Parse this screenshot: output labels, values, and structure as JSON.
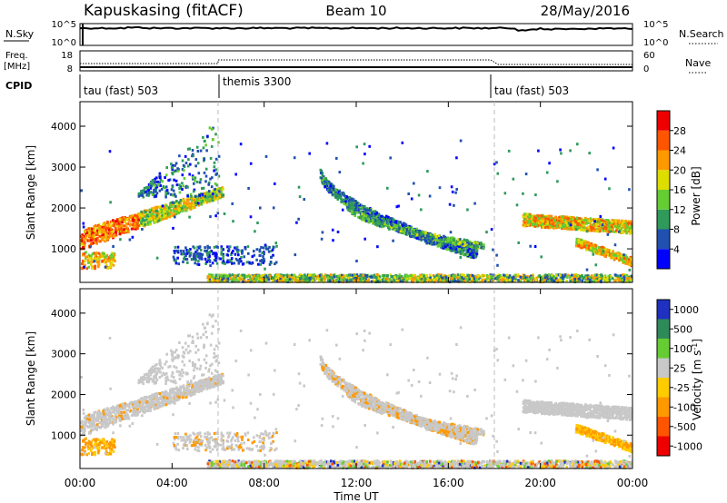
{
  "header": {
    "station": "Kapuskasing (fitACF)",
    "beam": "Beam 10",
    "date": "28/May/2016"
  },
  "top_panels": {
    "nsky_label": "N.Sky",
    "nsky_ticks": [
      "10^5",
      "10^0"
    ],
    "nsearch_label": "N.Search",
    "freq_label": "Freq.",
    "freq_unit": "[MHz]",
    "freq_ticks": [
      "18",
      "8"
    ],
    "nave_label": "Nave",
    "nave_ticks": [
      "60",
      "0"
    ],
    "cpid_label": "CPID",
    "cpid_segments": [
      {
        "name": "tau (fast) 503",
        "start_hour": 0
      },
      {
        "name": "themis 3300",
        "start_hour": 6
      },
      {
        "name": "tau (fast) 503",
        "start_hour": 18
      }
    ]
  },
  "chart_data": [
    {
      "type": "heatmap",
      "title": "",
      "xlabel": "Time UT",
      "ylabel": "Slant Range [km]",
      "xlim": [
        0,
        24
      ],
      "ylim": [
        180,
        4600
      ],
      "x_ticks": [
        "00:00",
        "04:00",
        "08:00",
        "12:00",
        "16:00",
        "20:00",
        "00:00"
      ],
      "y_ticks": [
        1000,
        2000,
        3000,
        4000
      ],
      "colorbar": {
        "label": "Power [dB]",
        "ticks": [
          "4",
          "8",
          "12",
          "16",
          "20",
          "24",
          "28"
        ],
        "colors": [
          "#0000ff",
          "#2050b0",
          "#2f9a5a",
          "#66cc33",
          "#dddd00",
          "#ff9900",
          "#ff5500",
          "#ee0000"
        ]
      },
      "features": [
        {
          "name": "evening band rising",
          "x_hour": [
            0,
            6
          ],
          "y_km": [
            1300,
            2500
          ],
          "level": "high"
        },
        {
          "name": "near-range ground scatter",
          "x_hour": [
            6,
            24
          ],
          "y_km": [
            250,
            400
          ],
          "level": "mid"
        },
        {
          "name": "arc from midnight",
          "x_hour": [
            10.5,
            17
          ],
          "y_km": [
            2800,
            900
          ],
          "level": "low"
        },
        {
          "name": "morning band",
          "x_hour": [
            19.5,
            24
          ],
          "y_km": [
            1800,
            1500
          ],
          "level": "high"
        }
      ]
    },
    {
      "type": "heatmap",
      "title": "",
      "xlabel": "Time UT",
      "ylabel": "Slant Range [km]",
      "xlim": [
        0,
        24
      ],
      "ylim": [
        180,
        4600
      ],
      "x_ticks": [
        "00:00",
        "04:00",
        "08:00",
        "12:00",
        "16:00",
        "20:00",
        "00:00"
      ],
      "y_ticks": [
        1000,
        2000,
        3000,
        4000
      ],
      "colorbar": {
        "label": "Velocity [m s",
        "label_sup": "-1",
        "label_end": "]",
        "ticks": [
          "1000",
          "500",
          "100",
          "25",
          "-25",
          "-100",
          "-500",
          "-1000"
        ],
        "colors": [
          "#2030c0",
          "#2f8a5a",
          "#66cc33",
          "#c8c8c8",
          "#ffcc00",
          "#ff9900",
          "#ff5500",
          "#ee0000"
        ]
      }
    }
  ]
}
